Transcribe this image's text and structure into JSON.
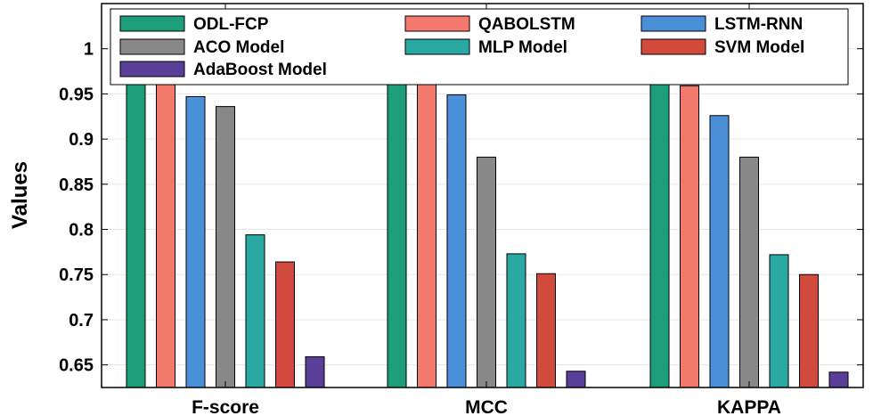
{
  "chart_data": {
    "type": "bar",
    "title": "",
    "xlabel": "",
    "ylabel": "Values",
    "ylim": [
      0.625,
      1.05
    ],
    "yticks": [
      "0.65",
      "0.7",
      "0.75",
      "0.8",
      "0.85",
      "0.9",
      "0.95",
      "1"
    ],
    "grid": true,
    "legend_position": "top",
    "categories": [
      "F-score",
      "MCC",
      "KAPPA"
    ],
    "series": [
      {
        "name": "ODL-FCP",
        "color": "#1e9e78",
        "values": [
          0.973,
          0.977,
          0.963
        ]
      },
      {
        "name": "QABOLSTM",
        "color": "#f2796c",
        "values": [
          0.961,
          0.969,
          0.959
        ]
      },
      {
        "name": "LSTM-RNN",
        "color": "#4a90d9",
        "values": [
          0.947,
          0.949,
          0.926
        ]
      },
      {
        "name": "ACO Model",
        "color": "#888888",
        "values": [
          0.936,
          0.88,
          0.88
        ]
      },
      {
        "name": "MLP Model",
        "color": "#2aa9a3",
        "values": [
          0.794,
          0.773,
          0.772
        ]
      },
      {
        "name": "SVM Model",
        "color": "#d24a3c",
        "values": [
          0.764,
          0.751,
          0.75
        ]
      },
      {
        "name": "AdaBoost Model",
        "color": "#5a3f99",
        "values": [
          0.659,
          0.643,
          0.642
        ]
      }
    ]
  }
}
